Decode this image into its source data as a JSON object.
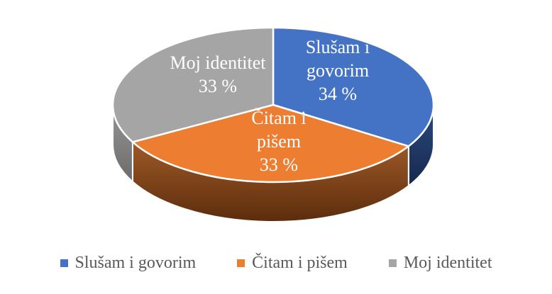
{
  "chart_data": {
    "type": "pie",
    "style": "3d",
    "title": "",
    "start_angle_deg": 0,
    "direction": "clockwise",
    "background": "#FFFFFF",
    "separator_color": "#FFFFFF",
    "label_text_color": "#FFFFFF",
    "legend_text_color": "#595959",
    "legend_position": "bottom",
    "slices": [
      {
        "label": "Slušam i govorim",
        "value": 34,
        "display_value": "34 %",
        "data_label_lines": [
          "Slušam i",
          "govorim",
          "34 %"
        ],
        "color": "#4472C4",
        "side_top": "#2B4A7E",
        "side_bottom": "#16294D"
      },
      {
        "label": "Čitam i pišem",
        "value": 33,
        "display_value": "33 %",
        "data_label_lines": [
          "Čitam i",
          "pišem",
          "33 %"
        ],
        "color": "#ED7D31",
        "side_top": "#9E5A28",
        "side_bottom": "#5C2C0C"
      },
      {
        "label": "Moj identitet",
        "value": 33,
        "display_value": "33 %",
        "data_label_lines": [
          "Moj identitet",
          "33 %"
        ],
        "color": "#A5A5A5",
        "side_top": "#979797",
        "side_bottom": "#6B6B6B"
      }
    ],
    "legend_items": [
      "Slušam i govorim",
      "Čitam i pišem",
      "Moj identitet"
    ]
  }
}
